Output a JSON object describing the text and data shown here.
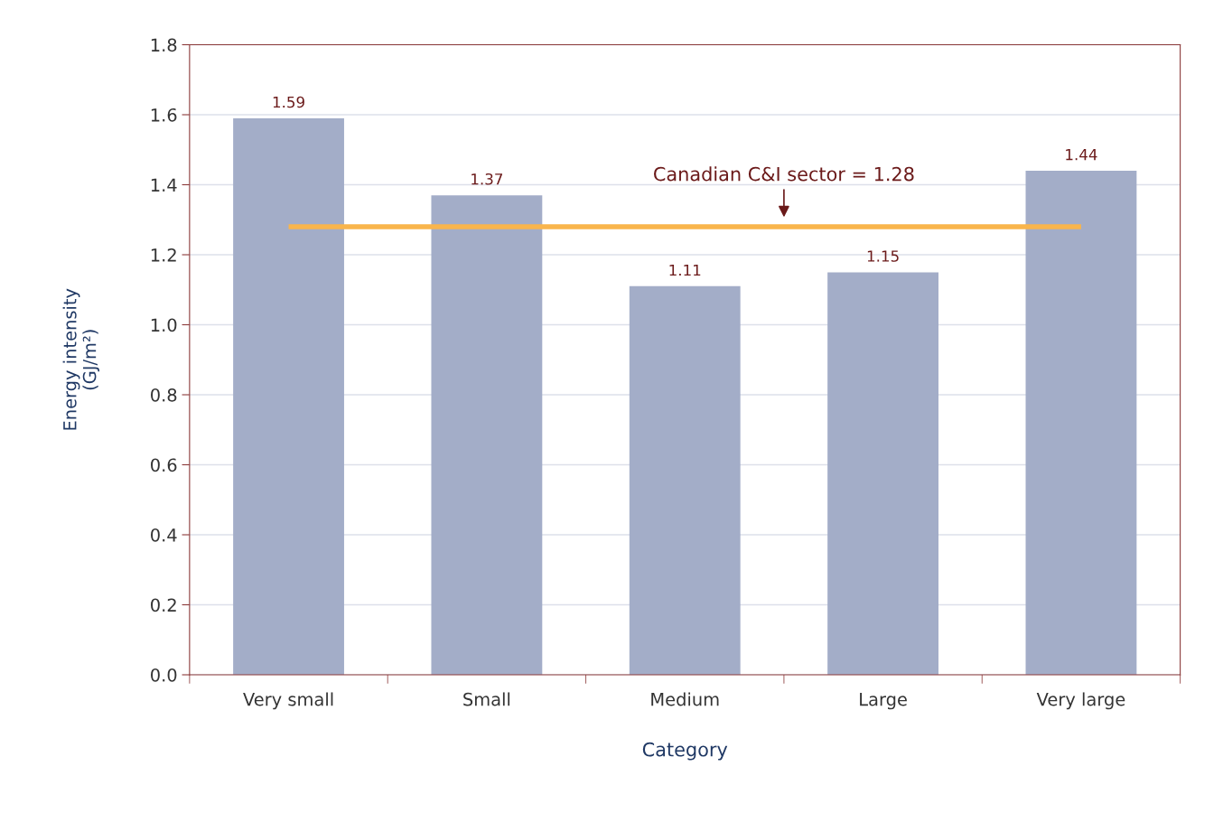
{
  "chart_data": {
    "type": "bar",
    "xlabel": "Category",
    "ylabel": "Energy intensity\n(GJ/m²)",
    "categories": [
      "Very small",
      "Small",
      "Medium",
      "Large",
      "Very large"
    ],
    "values": [
      1.59,
      1.37,
      1.11,
      1.15,
      1.44
    ],
    "color": "#a3adc8",
    "ylim": [
      0,
      1.8
    ],
    "yticks": [
      {
        "value": 0,
        "label": "0.0"
      },
      0.2,
      0.4,
      0.6,
      0.8,
      {
        "value": 1,
        "label": "1.0"
      },
      1.2,
      1.4,
      1.6,
      1.8
    ],
    "grid": "y",
    "data_labels": true,
    "ref_lines": [
      {
        "axis": "y",
        "value": 1.28,
        "label": "Canadian C&I sector = 1.28",
        "color": "#f9b54c",
        "line_style": "solid"
      }
    ]
  }
}
